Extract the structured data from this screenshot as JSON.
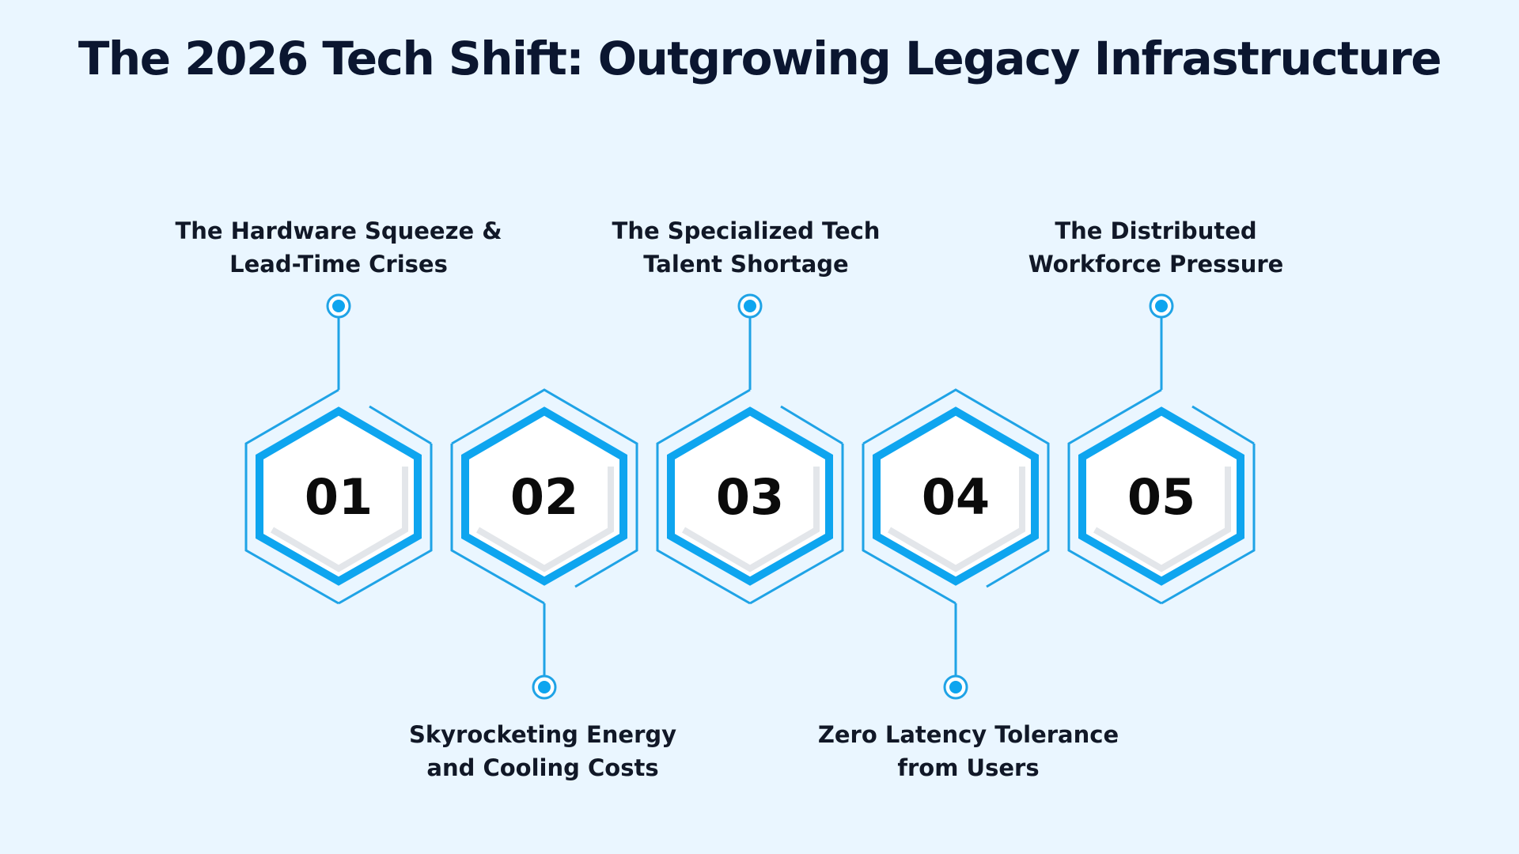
{
  "title": "The 2026 Tech Shift: Outgrowing Legacy Infrastructure",
  "colors": {
    "background": "#eaf6ff",
    "accent": "#0ea5ef",
    "thin_line": "#1fa3e6",
    "dot": "#0ea5ef",
    "hex_fill": "#ffffff",
    "text": "#0b1630"
  },
  "steps": [
    {
      "number": "01",
      "label_line1": "The Hardware Squeeze &",
      "label_line2": "Lead-Time Crises",
      "label_position": "top"
    },
    {
      "number": "02",
      "label_line1": "Skyrocketing Energy",
      "label_line2": "and Cooling Costs",
      "label_position": "bottom"
    },
    {
      "number": "03",
      "label_line1": "The Specialized Tech",
      "label_line2": "Talent Shortage",
      "label_position": "top"
    },
    {
      "number": "04",
      "label_line1": "Zero Latency Tolerance",
      "label_line2": "from Users",
      "label_position": "bottom"
    },
    {
      "number": "05",
      "label_line1": "The Distributed",
      "label_line2": "Workforce Pressure",
      "label_position": "top"
    }
  ]
}
